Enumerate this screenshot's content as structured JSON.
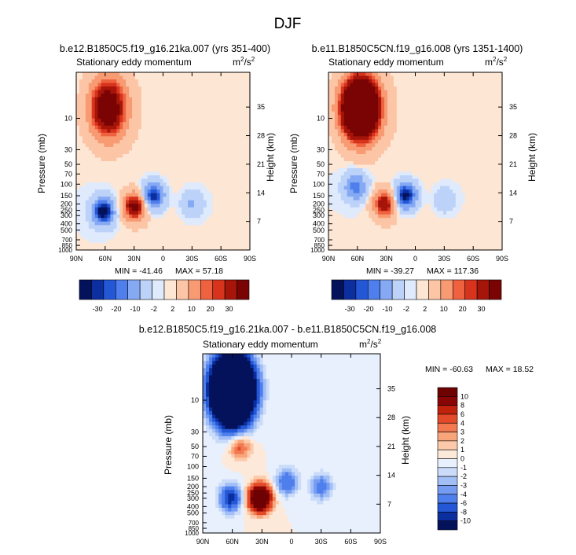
{
  "page": {
    "title": "DJF"
  },
  "chart_data": [
    {
      "type": "heatmap",
      "case": "b.e12.B1850C5.f19_g16.21ka.007 (yrs 351-400)",
      "subtitle": "Stationary eddy momentum",
      "units": "m",
      "units_exp": "2",
      "units_den": "/s",
      "units_den_exp": "2",
      "ylabel": "Pressure (mb)",
      "ylabel_right": "Height (km)",
      "xticks": [
        "90N",
        "60N",
        "30N",
        "0",
        "30S",
        "60S",
        "90S"
      ],
      "yticks": [
        "10",
        "30",
        "50",
        "70",
        "100",
        "150",
        "200",
        "250",
        "300",
        "400",
        "500",
        "700",
        "850",
        "1000"
      ],
      "height_ticks": [
        "35",
        "28",
        "21",
        "14",
        "7"
      ],
      "min_label": "MIN = -41.46",
      "max_label": "MAX = 57.18",
      "cbar_levels": [
        "-30",
        "-20",
        "-10",
        "-2",
        "2",
        "10",
        "20",
        "30"
      ],
      "features": [
        {
          "lat": 57,
          "p": 7,
          "value": 57.18
        },
        {
          "lat": 62,
          "p": 260,
          "value": -41.46
        },
        {
          "lat": 30,
          "p": 220,
          "value": 45
        },
        {
          "lat": 10,
          "p": 150,
          "value": -35
        },
        {
          "lat": -30,
          "p": 200,
          "value": -12
        }
      ]
    },
    {
      "type": "heatmap",
      "case": "b.e11.B1850C5CN.f19_g16.008 (yrs 1351-1400)",
      "subtitle": "Stationary eddy momentum",
      "units": "m",
      "units_exp": "2",
      "units_den": "/s",
      "units_den_exp": "2",
      "ylabel": "Pressure (mb)",
      "ylabel_right": "Height (km)",
      "xticks": [
        "90N",
        "60N",
        "30N",
        "0",
        "30S",
        "60S",
        "90S"
      ],
      "yticks": [
        "10",
        "30",
        "50",
        "70",
        "100",
        "150",
        "200",
        "250",
        "300",
        "400",
        "500",
        "700",
        "850",
        "1000"
      ],
      "height_ticks": [
        "35",
        "28",
        "21",
        "14",
        "7"
      ],
      "min_label": "MIN = -39.27",
      "max_label": "MAX = 117.36",
      "cbar_levels": [
        "-30",
        "-20",
        "-10",
        "-2",
        "2",
        "10",
        "20",
        "30"
      ],
      "features": [
        {
          "lat": 57,
          "p": 7,
          "value": 117.36
        },
        {
          "lat": 62,
          "p": 110,
          "value": -25
        },
        {
          "lat": 32,
          "p": 200,
          "value": 38
        },
        {
          "lat": 10,
          "p": 150,
          "value": -39.27
        },
        {
          "lat": -30,
          "p": 170,
          "value": -8
        }
      ]
    },
    {
      "type": "heatmap",
      "case": "b.e12.B1850C5.f19_g16.21ka.007 - b.e11.B1850C5CN.f19_g16.008",
      "subtitle": "Stationary eddy momentum",
      "units": "m",
      "units_exp": "2",
      "units_den": "/s",
      "units_den_exp": "2",
      "ylabel": "Pressure (mb)",
      "ylabel_right": "Height (km)",
      "xticks": [
        "90N",
        "60N",
        "30N",
        "0",
        "30S",
        "60S",
        "90S"
      ],
      "yticks": [
        "10",
        "30",
        "50",
        "70",
        "100",
        "150",
        "200",
        "250",
        "300",
        "400",
        "500",
        "700",
        "850",
        "1000"
      ],
      "height_ticks": [
        "35",
        "28",
        "21",
        "14",
        "7"
      ],
      "min_label": "MIN = -60.63",
      "max_label": "MAX =  18.52",
      "cbar_levels": [
        "10",
        "8",
        "6",
        "4",
        "3",
        "2",
        "1",
        "0",
        "-1",
        "-2",
        "-3",
        "-4",
        "-6",
        "-8",
        "-10"
      ],
      "features": [
        {
          "lat": 60,
          "p": 7,
          "value": -60.63
        },
        {
          "lat": 52,
          "p": 50,
          "value": 5
        },
        {
          "lat": 62,
          "p": 300,
          "value": -9
        },
        {
          "lat": 32,
          "p": 300,
          "value": 18.52
        },
        {
          "lat": 5,
          "p": 170,
          "value": -6
        },
        {
          "lat": -30,
          "p": 200,
          "value": -5
        }
      ]
    }
  ],
  "colors": {
    "full_scale": [
      "#04125c",
      "#0c2fa0",
      "#2457d6",
      "#4e7fec",
      "#86a9f4",
      "#bcd2f8",
      "#dfeafd",
      "#fde6d4",
      "#fcc5a6",
      "#f89a72",
      "#ef6240",
      "#d8331d",
      "#a51509",
      "#7a0404"
    ],
    "diff_scale": [
      "#04125c",
      "#0c2fa0",
      "#2457d6",
      "#4e7fec",
      "#759cf1",
      "#a1bef6",
      "#cadcfa",
      "#e8f0fd",
      "#fde9da",
      "#fccaaa",
      "#f9a57c",
      "#f27950",
      "#e24a2a",
      "#c0220e",
      "#8a0606",
      "#6e0202"
    ]
  }
}
